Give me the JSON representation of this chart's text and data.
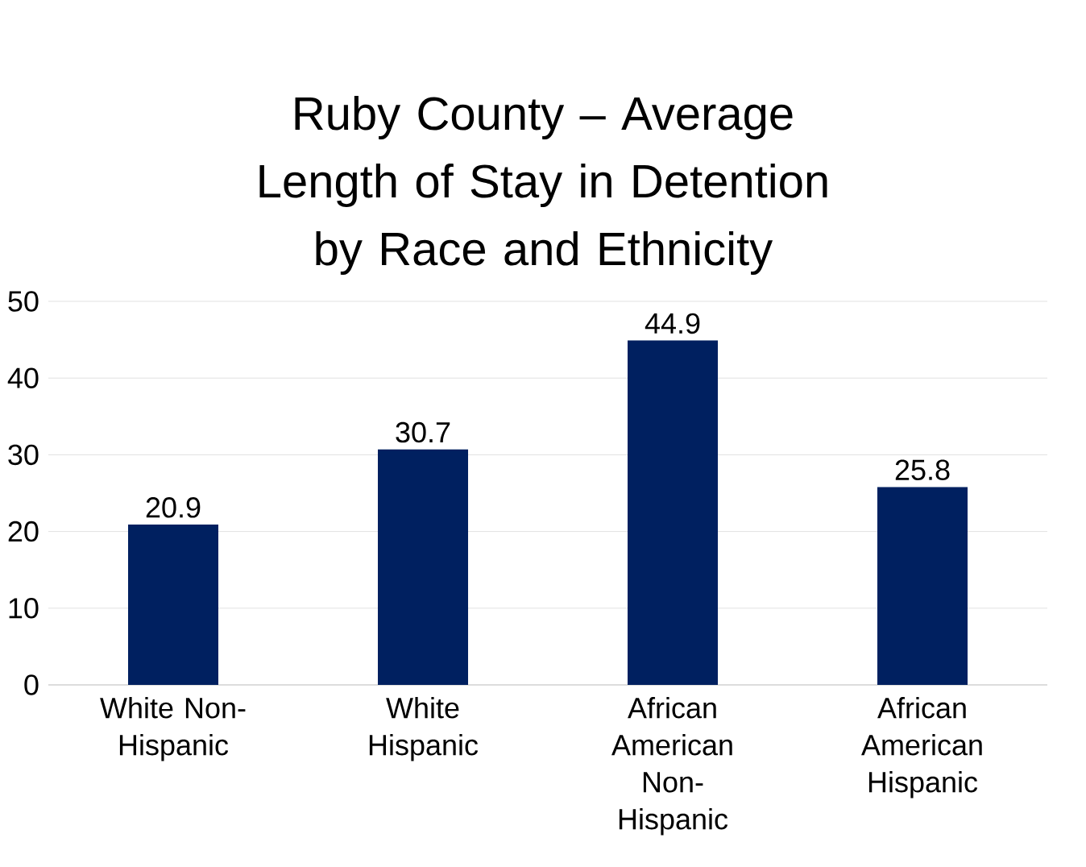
{
  "chart_data": {
    "type": "bar",
    "title": "Ruby County – Average Length of Stay in Detention by Race and Ethnicity",
    "categories": [
      "White Non-Hispanic",
      "White Hispanic",
      "African American Non-Hispanic",
      "African American Hispanic"
    ],
    "values": [
      20.9,
      30.7,
      44.9,
      25.8
    ],
    "color": "#002060",
    "ylim": [
      0,
      50
    ],
    "yticks": [
      0,
      10,
      20,
      30,
      40,
      50
    ],
    "grid": "y",
    "data_labels": true
  }
}
